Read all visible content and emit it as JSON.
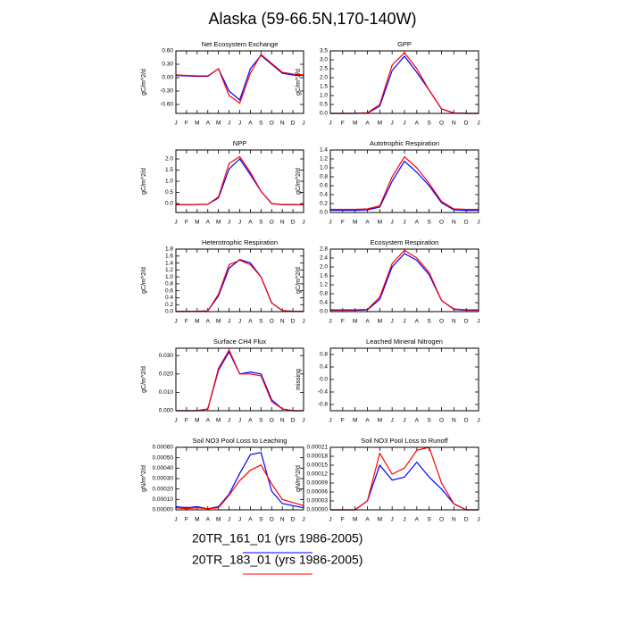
{
  "title": "Alaska (59-66.5N,170-140W)",
  "chart_data": [
    {
      "type": "line",
      "title": "Net Ecosystem Exchange",
      "ylabel": "gC/m^2/d",
      "categories": [
        "J",
        "F",
        "M",
        "A",
        "M",
        "J",
        "J",
        "A",
        "S",
        "O",
        "N",
        "D",
        "J"
      ],
      "ylim": [
        -0.8,
        0.6
      ],
      "yticks": [
        {
          "value": 0.6,
          "label": "0.60"
        },
        {
          "value": 0.3,
          "label": "0.30"
        },
        {
          "value": 0,
          "label": "0.00"
        },
        {
          "value": -0.3,
          "label": "-0.30"
        },
        {
          "value": -0.6,
          "label": "-0.60"
        }
      ],
      "series": [
        {
          "name": "20TR_161_01 (yrs 1986-2005)",
          "color": "#0000ff",
          "values": [
            0.05,
            0.04,
            0.03,
            0.03,
            0.2,
            -0.3,
            -0.5,
            0.2,
            0.5,
            0.3,
            0.1,
            0.06,
            0.05
          ]
        },
        {
          "name": "20TR_183_01 (yrs 1986-2005)",
          "color": "#ff0000",
          "values": [
            0.06,
            0.05,
            0.04,
            0.04,
            0.2,
            -0.4,
            -0.57,
            0.1,
            0.52,
            0.32,
            0.12,
            0.08,
            0.06
          ]
        }
      ]
    },
    {
      "type": "line",
      "title": "GPP",
      "ylabel": "gC/m^2/d",
      "categories": [
        "J",
        "F",
        "M",
        "A",
        "M",
        "J",
        "J",
        "A",
        "S",
        "O",
        "N",
        "D",
        "J"
      ],
      "ylim": [
        0,
        3.5
      ],
      "yticks": [
        {
          "value": 0,
          "label": "0.0"
        },
        {
          "value": 0.5,
          "label": "0.5"
        },
        {
          "value": 1,
          "label": "1.0"
        },
        {
          "value": 1.5,
          "label": "1.5"
        },
        {
          "value": 2,
          "label": "2.0"
        },
        {
          "value": 2.5,
          "label": "2.5"
        },
        {
          "value": 3,
          "label": "3.0"
        },
        {
          "value": 3.5,
          "label": "3.5"
        }
      ],
      "series": [
        {
          "name": "20TR_161_01 (yrs 1986-2005)",
          "color": "#0000ff",
          "values": [
            0,
            0,
            0,
            0.02,
            0.4,
            2.4,
            3.2,
            2.3,
            1.3,
            0.25,
            0.02,
            0,
            0
          ]
        },
        {
          "name": "20TR_183_01 (yrs 1986-2005)",
          "color": "#ff0000",
          "values": [
            0,
            0,
            0,
            0.03,
            0.5,
            2.7,
            3.4,
            2.5,
            1.3,
            0.25,
            0.02,
            0,
            0
          ]
        }
      ]
    },
    {
      "type": "line",
      "title": "NPP",
      "ylabel": "gC/m^2/d",
      "categories": [
        "J",
        "F",
        "M",
        "A",
        "M",
        "J",
        "J",
        "A",
        "S",
        "O",
        "N",
        "D",
        "J"
      ],
      "ylim": [
        -0.4,
        2.4
      ],
      "yticks": [
        {
          "value": 0,
          "label": "0.0"
        },
        {
          "value": 0.5,
          "label": "0.5"
        },
        {
          "value": 1,
          "label": "1.0"
        },
        {
          "value": 1.5,
          "label": "1.5"
        },
        {
          "value": 2,
          "label": "2.0"
        }
      ],
      "series": [
        {
          "name": "20TR_161_01 (yrs 1986-2005)",
          "color": "#0000ff",
          "values": [
            -0.05,
            -0.05,
            -0.04,
            -0.03,
            0.25,
            1.55,
            2.0,
            1.3,
            0.55,
            0.0,
            -0.05,
            -0.05,
            -0.05
          ]
        },
        {
          "name": "20TR_183_01 (yrs 1986-2005)",
          "color": "#ff0000",
          "values": [
            -0.05,
            -0.05,
            -0.04,
            -0.03,
            0.3,
            1.8,
            2.1,
            1.4,
            0.55,
            0.0,
            -0.04,
            -0.04,
            -0.05
          ]
        }
      ]
    },
    {
      "type": "line",
      "title": "Autotrophic Respiration",
      "ylabel": "gC/m^2/d",
      "categories": [
        "J",
        "F",
        "M",
        "A",
        "M",
        "J",
        "J",
        "A",
        "S",
        "O",
        "N",
        "D",
        "J"
      ],
      "ylim": [
        0,
        1.4
      ],
      "yticks": [
        {
          "value": 0,
          "label": "0.0"
        },
        {
          "value": 0.2,
          "label": "0.2"
        },
        {
          "value": 0.4,
          "label": "0.4"
        },
        {
          "value": 0.6,
          "label": "0.6"
        },
        {
          "value": 0.8,
          "label": "0.8"
        },
        {
          "value": 1,
          "label": "1.0"
        },
        {
          "value": 1.2,
          "label": "1.2"
        },
        {
          "value": 1.4,
          "label": "1.4"
        }
      ],
      "series": [
        {
          "name": "20TR_161_01 (yrs 1986-2005)",
          "color": "#0000ff",
          "values": [
            0.05,
            0.05,
            0.05,
            0.06,
            0.12,
            0.7,
            1.15,
            0.9,
            0.6,
            0.22,
            0.06,
            0.05,
            0.05
          ]
        },
        {
          "name": "20TR_183_01 (yrs 1986-2005)",
          "color": "#ff0000",
          "values": [
            0.07,
            0.07,
            0.07,
            0.08,
            0.15,
            0.8,
            1.25,
            1.0,
            0.65,
            0.25,
            0.08,
            0.07,
            0.07
          ]
        }
      ]
    },
    {
      "type": "line",
      "title": "Heterotrophic Respiration",
      "ylabel": "gC/m^2/d",
      "categories": [
        "J",
        "F",
        "M",
        "A",
        "M",
        "J",
        "J",
        "A",
        "S",
        "O",
        "N",
        "D",
        "J"
      ],
      "ylim": [
        0,
        1.8
      ],
      "yticks": [
        {
          "value": 0,
          "label": "0.0"
        },
        {
          "value": 0.2,
          "label": "0.2"
        },
        {
          "value": 0.4,
          "label": "0.4"
        },
        {
          "value": 0.6,
          "label": "0.6"
        },
        {
          "value": 0.8,
          "label": "0.8"
        },
        {
          "value": 1,
          "label": "1.0"
        },
        {
          "value": 1.2,
          "label": "1.2"
        },
        {
          "value": 1.4,
          "label": "1.4"
        },
        {
          "value": 1.6,
          "label": "1.6"
        },
        {
          "value": 1.8,
          "label": "1.8"
        }
      ],
      "series": [
        {
          "name": "20TR_161_01 (yrs 1986-2005)",
          "color": "#0000ff",
          "values": [
            0.01,
            0.01,
            0.01,
            0.02,
            0.45,
            1.25,
            1.5,
            1.4,
            1.0,
            0.25,
            0.03,
            0.01,
            0.01
          ]
        },
        {
          "name": "20TR_183_01 (yrs 1986-2005)",
          "color": "#ff0000",
          "values": [
            0.01,
            0.01,
            0.01,
            0.02,
            0.5,
            1.35,
            1.48,
            1.35,
            1.0,
            0.25,
            0.03,
            0.01,
            0.01
          ]
        }
      ]
    },
    {
      "type": "line",
      "title": "Ecosystem Respiration",
      "ylabel": "gC/m^2/d",
      "categories": [
        "J",
        "F",
        "M",
        "A",
        "M",
        "J",
        "J",
        "A",
        "S",
        "O",
        "N",
        "D",
        "J"
      ],
      "ylim": [
        0,
        2.8
      ],
      "yticks": [
        {
          "value": 0,
          "label": "0.0"
        },
        {
          "value": 0.4,
          "label": "0.4"
        },
        {
          "value": 0.8,
          "label": "0.8"
        },
        {
          "value": 1.2,
          "label": "1.2"
        },
        {
          "value": 1.6,
          "label": "1.6"
        },
        {
          "value": 2,
          "label": "2.0"
        },
        {
          "value": 2.4,
          "label": "2.4"
        },
        {
          "value": 2.8,
          "label": "2.8"
        }
      ],
      "series": [
        {
          "name": "20TR_161_01 (yrs 1986-2005)",
          "color": "#0000ff",
          "values": [
            0.06,
            0.06,
            0.06,
            0.08,
            0.55,
            2.0,
            2.6,
            2.3,
            1.65,
            0.5,
            0.1,
            0.06,
            0.06
          ]
        },
        {
          "name": "20TR_183_01 (yrs 1986-2005)",
          "color": "#ff0000",
          "values": [
            0.08,
            0.08,
            0.08,
            0.1,
            0.65,
            2.15,
            2.75,
            2.4,
            1.75,
            0.5,
            0.12,
            0.08,
            0.08
          ]
        }
      ]
    },
    {
      "type": "line",
      "title": "Surface CH4 Flux",
      "ylabel": "gC/m^2/d",
      "categories": [
        "J",
        "F",
        "M",
        "A",
        "M",
        "J",
        "J",
        "A",
        "S",
        "O",
        "N",
        "D",
        "J"
      ],
      "ylim": [
        0,
        0.034
      ],
      "yticks": [
        {
          "value": 0,
          "label": "0.000"
        },
        {
          "value": 0.01,
          "label": "0.010"
        },
        {
          "value": 0.02,
          "label": "0.020"
        },
        {
          "value": 0.03,
          "label": "0.030"
        }
      ],
      "series": [
        {
          "name": "20TR_161_01 (yrs 1986-2005)",
          "color": "#0000ff",
          "values": [
            0,
            0,
            0,
            0.001,
            0.022,
            0.032,
            0.02,
            0.021,
            0.02,
            0.006,
            0.001,
            0,
            0
          ]
        },
        {
          "name": "20TR_183_01 (yrs 1986-2005)",
          "color": "#ff0000",
          "values": [
            0,
            0,
            0,
            0.001,
            0.023,
            0.033,
            0.02,
            0.02,
            0.019,
            0.005,
            0.001,
            0,
            0
          ]
        }
      ]
    },
    {
      "type": "line",
      "title": "Leached Mineral Nitrogen",
      "ylabel": "missing",
      "categories": [
        "J",
        "F",
        "M",
        "A",
        "M",
        "J",
        "J",
        "A",
        "S",
        "O",
        "N",
        "D",
        "J"
      ],
      "ylim": [
        -1,
        1
      ],
      "yticks": [
        {
          "value": -0.8,
          "label": "-0.8"
        },
        {
          "value": -0.4,
          "label": "-0.4"
        },
        {
          "value": 0,
          "label": "0.0"
        },
        {
          "value": 0.4,
          "label": "0.4"
        },
        {
          "value": 0.8,
          "label": "0.8"
        }
      ]
    },
    {
      "type": "line",
      "title": "Soil NO3 Pool Loss to Leaching",
      "ylabel": "gN/m^2/d",
      "categories": [
        "J",
        "F",
        "M",
        "A",
        "M",
        "J",
        "J",
        "A",
        "S",
        "O",
        "N",
        "D",
        "J"
      ],
      "ylim": [
        0,
        0.0006
      ],
      "yticks": [
        {
          "value": 0,
          "label": "0.00000"
        },
        {
          "value": 0.0001,
          "label": "0.00010"
        },
        {
          "value": 0.0002,
          "label": "0.00020"
        },
        {
          "value": 0.0003,
          "label": "0.00030"
        },
        {
          "value": 0.0004,
          "label": "0.00040"
        },
        {
          "value": 0.0005,
          "label": "0.00050"
        },
        {
          "value": 0.0006,
          "label": "0.00060"
        }
      ],
      "series": [
        {
          "name": "20TR_161_01 (yrs 1986-2005)",
          "color": "#0000ff",
          "values": [
            3e-05,
            2e-05,
            3e-05,
            1e-05,
            3e-05,
            0.00015,
            0.00035,
            0.00053,
            0.00055,
            0.00018,
            6e-05,
            4e-05,
            2e-05
          ]
        },
        {
          "name": "20TR_183_01 (yrs 1986-2005)",
          "color": "#ff0000",
          "values": [
            2e-05,
            1e-05,
            2e-05,
            1e-05,
            2e-05,
            0.00014,
            0.00028,
            0.00038,
            0.00043,
            0.00025,
            0.0001,
            7e-05,
            4e-05
          ]
        }
      ]
    },
    {
      "type": "line",
      "title": "Soil NO3 Pool Loss to Runoff",
      "ylabel": "gN/m^2/d",
      "categories": [
        "J",
        "F",
        "M",
        "A",
        "M",
        "J",
        "J",
        "A",
        "S",
        "O",
        "N",
        "D",
        "J"
      ],
      "ylim": [
        0,
        0.00021
      ],
      "yticks": [
        {
          "value": 0,
          "label": "0.00000"
        },
        {
          "value": 3e-05,
          "label": "0.00003"
        },
        {
          "value": 6e-05,
          "label": "0.00006"
        },
        {
          "value": 9e-05,
          "label": "0.00009"
        },
        {
          "value": 0.00012,
          "label": "0.00012"
        },
        {
          "value": 0.00015,
          "label": "0.00015"
        },
        {
          "value": 0.00018,
          "label": "0.00018"
        },
        {
          "value": 0.00021,
          "label": "0.00021"
        }
      ],
      "series": [
        {
          "name": "20TR_161_01 (yrs 1986-2005)",
          "color": "#0000ff",
          "values": [
            0,
            0,
            0,
            3e-05,
            0.00015,
            0.0001,
            0.00011,
            0.00016,
            0.00011,
            7e-05,
            2e-05,
            0,
            0
          ]
        },
        {
          "name": "20TR_183_01 (yrs 1986-2005)",
          "color": "#ff0000",
          "values": [
            0,
            0,
            0,
            3e-05,
            0.00019,
            0.00012,
            0.00014,
            0.0002,
            0.00021,
            9e-05,
            2e-05,
            0,
            0
          ]
        }
      ]
    }
  ]
}
